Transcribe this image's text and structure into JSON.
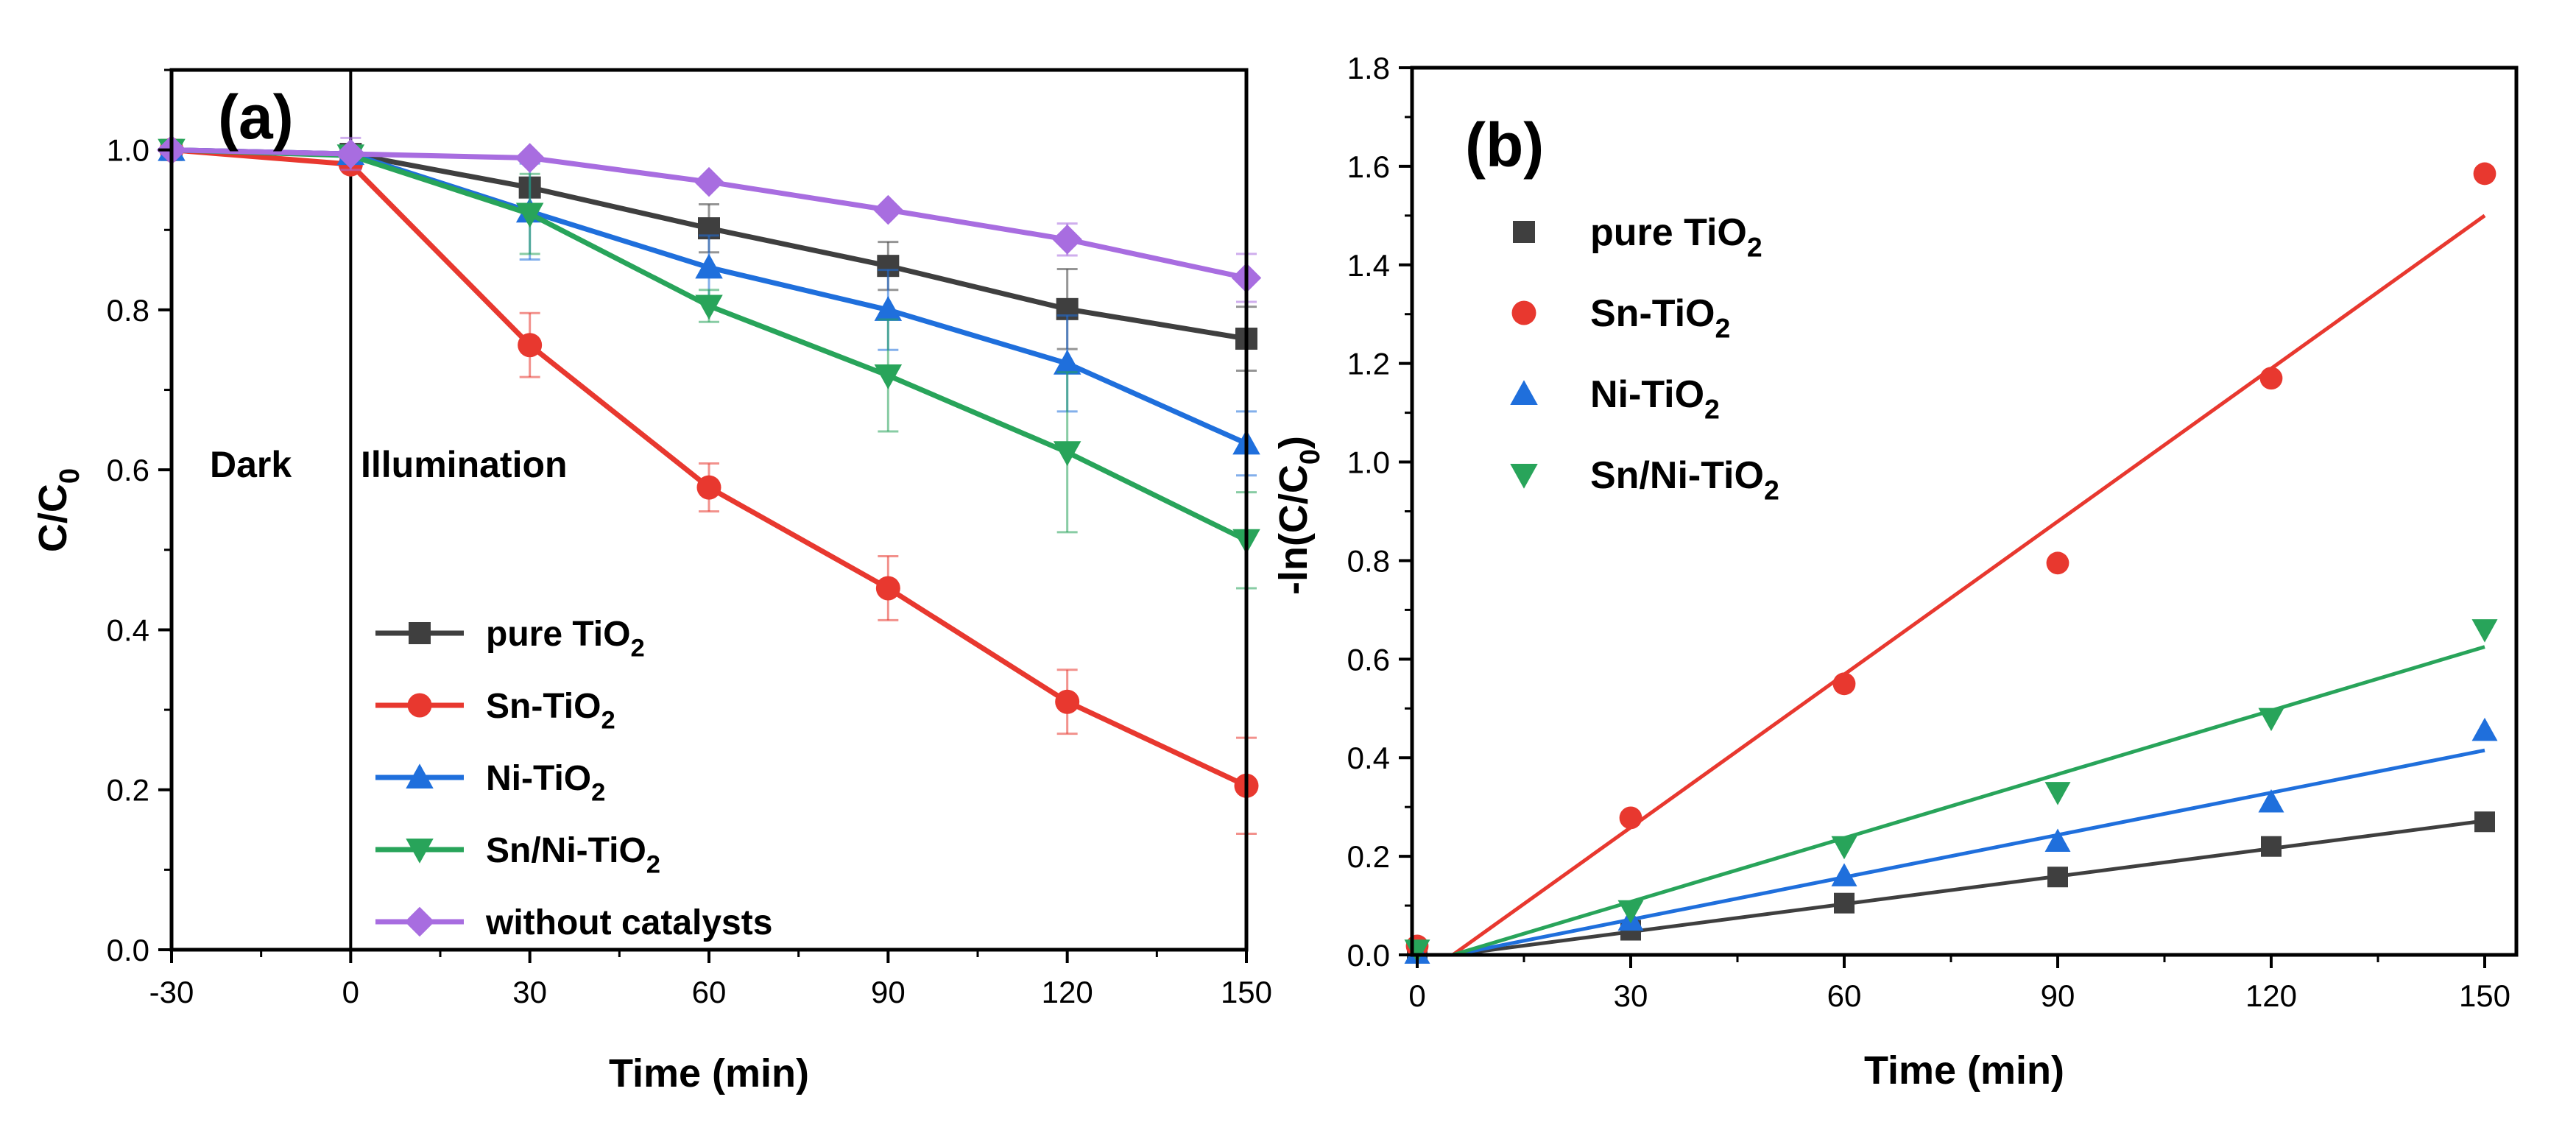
{
  "chart_data": [
    {
      "type": "line",
      "panel_label": "(a)",
      "xlabel": "Time (min)",
      "ylabel": "C/C0",
      "xlim": [
        -30,
        150
      ],
      "ylim": [
        0,
        1.1
      ],
      "xticks": [
        "-30",
        "0",
        "30",
        "60",
        "90",
        "120",
        "150"
      ],
      "yticks": [
        "0.0",
        "0.2",
        "0.4",
        "0.6",
        "0.8",
        "1.0"
      ],
      "annotations": {
        "dark": "Dark",
        "illumination": "Illumination"
      },
      "divider_x": 0,
      "legend_position": "bottom-center",
      "x": [
        -30,
        0,
        30,
        60,
        90,
        120,
        150
      ],
      "series": [
        {
          "name": "pure TiO2",
          "label_main": "pure TiO",
          "label_sub": "2",
          "label_tail": "",
          "color": "#3f3f3f",
          "marker": "square",
          "values": [
            1.0,
            0.995,
            0.953,
            0.902,
            0.855,
            0.801,
            0.764
          ],
          "errors": [
            0,
            0,
            0,
            0.03,
            0.03,
            0.05,
            0.04
          ]
        },
        {
          "name": "Sn-TiO2",
          "label_main": "Sn-TiO",
          "label_sub": "2",
          "label_tail": "",
          "color": "#e8382f",
          "marker": "circle",
          "values": [
            1.0,
            0.982,
            0.756,
            0.578,
            0.452,
            0.31,
            0.205
          ],
          "errors": [
            0,
            0,
            0.04,
            0.03,
            0.04,
            0.04,
            0.06
          ]
        },
        {
          "name": "Ni-TiO2",
          "label_main": "Ni-TiO",
          "label_sub": "2",
          "label_tail": "",
          "color": "#1f6fdc",
          "marker": "triangle-up",
          "values": [
            1.0,
            0.995,
            0.923,
            0.853,
            0.8,
            0.733,
            0.633
          ],
          "errors": [
            0,
            0,
            0.06,
            0.04,
            0.05,
            0.06,
            0.04
          ]
        },
        {
          "name": "Sn/Ni-TiO2",
          "label_main": "Sn/Ni-TiO",
          "label_sub": "2",
          "label_tail": "",
          "color": "#28a45a",
          "marker": "triangle-down",
          "values": [
            1.0,
            0.993,
            0.92,
            0.805,
            0.718,
            0.622,
            0.512
          ],
          "errors": [
            0,
            0,
            0.05,
            0.02,
            0.07,
            0.1,
            0.06
          ]
        },
        {
          "name": "without catalysts",
          "label_main": "without catalysts",
          "label_sub": "",
          "label_tail": "",
          "color": "#a86de0",
          "marker": "diamond",
          "values": [
            1.0,
            0.995,
            0.99,
            0.96,
            0.925,
            0.888,
            0.84
          ],
          "errors": [
            0,
            0.02,
            0,
            0,
            0,
            0.02,
            0.03
          ]
        }
      ]
    },
    {
      "type": "scatter",
      "panel_label": "(b)",
      "xlabel": "Time (min)",
      "ylabel": "-ln(C/C0)",
      "xlim": [
        0,
        150
      ],
      "ylim": [
        0,
        1.8
      ],
      "xticks": [
        "0",
        "30",
        "60",
        "90",
        "120",
        "150"
      ],
      "yticks": [
        "0.0",
        "0.2",
        "0.4",
        "0.6",
        "0.8",
        "1.0",
        "1.2",
        "1.4",
        "1.6",
        "1.8"
      ],
      "legend_position": "top-left",
      "x": [
        0,
        30,
        60,
        90,
        120,
        150
      ],
      "series": [
        {
          "name": "pure TiO2",
          "label_main": "pure TiO",
          "label_sub": "2",
          "label_tail": "",
          "color": "#3f3f3f",
          "marker": "square",
          "values": [
            0.005,
            0.05,
            0.105,
            0.158,
            0.22,
            0.27
          ],
          "fit": [
            [
              5,
              0
            ],
            [
              150,
              0.272
            ]
          ]
        },
        {
          "name": "Sn-TiO2",
          "label_main": "Sn-TiO",
          "label_sub": "2",
          "label_tail": "",
          "color": "#e8382f",
          "marker": "circle",
          "values": [
            0.018,
            0.278,
            0.55,
            0.795,
            1.17,
            1.585
          ],
          "fit": [
            [
              5,
              0
            ],
            [
              150,
              1.5
            ]
          ]
        },
        {
          "name": "Ni-TiO2",
          "label_main": "Ni-TiO",
          "label_sub": "2",
          "label_tail": "",
          "color": "#1f6fdc",
          "marker": "triangle-up",
          "values": [
            0.003,
            0.07,
            0.16,
            0.23,
            0.31,
            0.455
          ],
          "fit": [
            [
              5,
              0
            ],
            [
              150,
              0.415
            ]
          ]
        },
        {
          "name": "Sn/Ni-TiO2",
          "label_main": "Sn/Ni-TiO",
          "label_sub": "2",
          "label_tail": "",
          "color": "#28a45a",
          "marker": "triangle-down",
          "values": [
            0.01,
            0.09,
            0.22,
            0.33,
            0.48,
            0.66
          ],
          "fit": [
            [
              5,
              0
            ],
            [
              150,
              0.625
            ]
          ]
        }
      ]
    }
  ]
}
